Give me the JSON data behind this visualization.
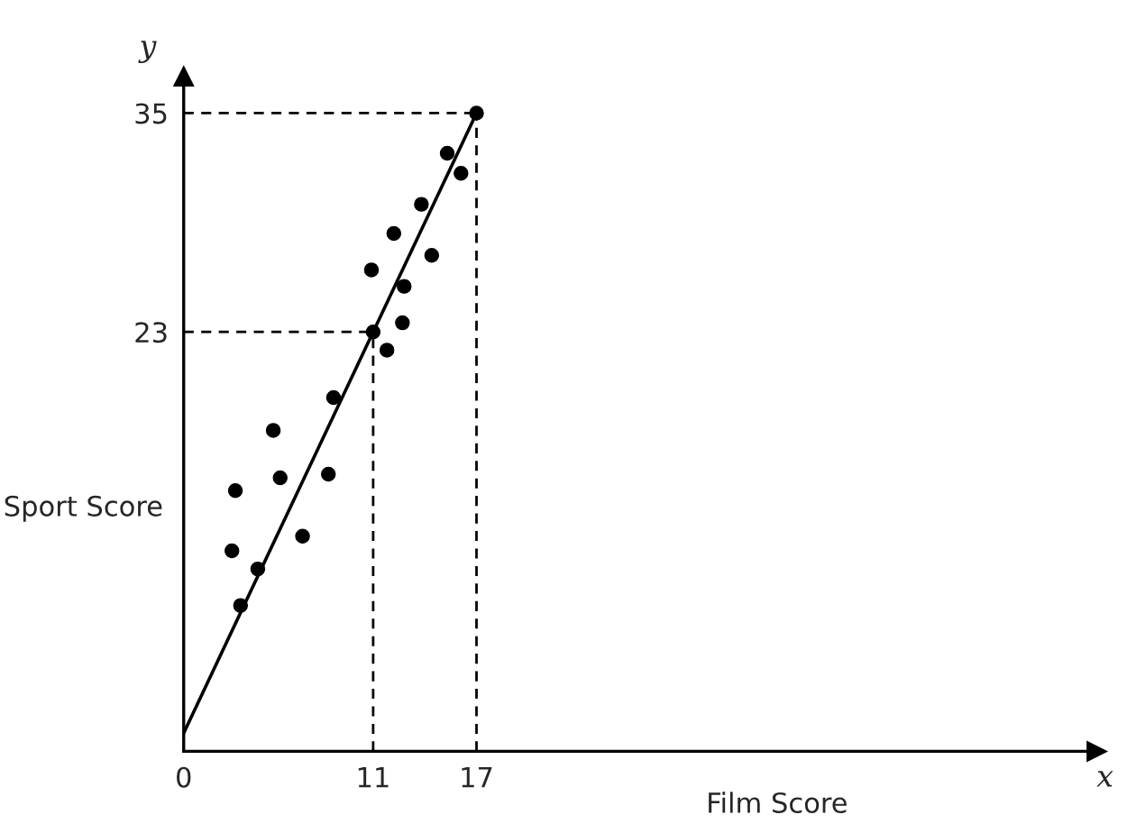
{
  "chart_data": {
    "type": "scatter",
    "xlabel": "Film Score",
    "ylabel": "Sport Score",
    "xlim": [
      0,
      53
    ],
    "ylim": [
      0,
      37
    ],
    "xticks": [
      0,
      11,
      17
    ],
    "yticks": [
      23,
      35
    ],
    "grid": false,
    "annotations": [
      "x",
      "y"
    ],
    "series": [
      {
        "color": "#000000",
        "marker": "circle",
        "x": [
          2.8,
          3.0,
          3.3,
          4.3,
          5.2,
          5.6,
          6.9,
          8.4,
          8.7,
          11,
          10.9,
          11.8,
          12.2,
          12.7,
          12.8,
          13.8,
          14.4,
          15.3,
          16.1,
          17
        ],
        "values": [
          11.0,
          14.3,
          8.0,
          10.0,
          17.6,
          15.0,
          11.8,
          15.2,
          19.4,
          23,
          26.4,
          22.0,
          28.4,
          23.5,
          25.5,
          30.0,
          27.2,
          32.8,
          31.7,
          35
        ]
      },
      {
        "type": "line",
        "color": "#000000",
        "x": [
          0,
          17
        ],
        "values": [
          1,
          35
        ]
      }
    ],
    "ref_lines": [
      {
        "axis": "y",
        "value": 23,
        "line_style": "dashed",
        "color": "#000000"
      },
      {
        "axis": "y",
        "value": 35,
        "line_style": "dashed",
        "color": "#000000"
      },
      {
        "axis": "x",
        "value": 11,
        "line_style": "dashed",
        "color": "#000000"
      },
      {
        "axis": "x",
        "value": 17,
        "line_style": "dashed",
        "color": "#000000"
      }
    ]
  }
}
